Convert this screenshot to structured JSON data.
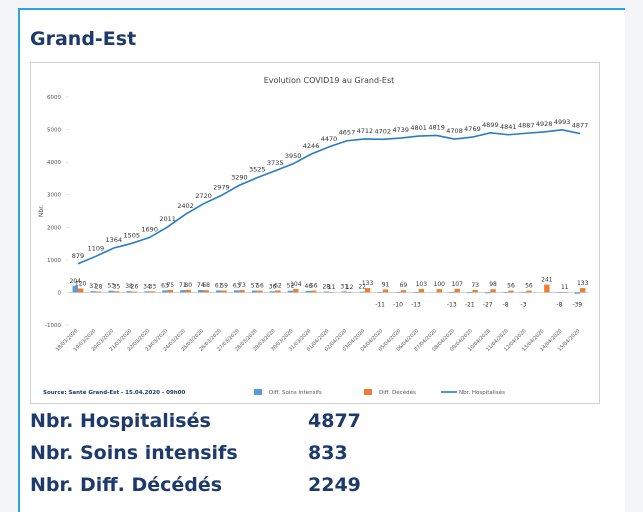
{
  "header": {
    "title": "Grand-Est"
  },
  "chart_data": {
    "type": "bar-line",
    "title": "Evolution COVID19 au Grand-Est",
    "y_label": "Nbr.",
    "source": "Source: Santé Grand-Est - 15.04.2020 - 09h00",
    "categories": [
      "18/03/2020",
      "19/03/2020",
      "20/03/2020",
      "21/03/2020",
      "22/03/2020",
      "23/03/2020",
      "24/03/2020",
      "25/03/2020",
      "26/03/2020",
      "27/03/2020",
      "28/03/2020",
      "29/03/2020",
      "30/03/2020",
      "31/03/2020",
      "01/04/2020",
      "02/04/2020",
      "03/04/2020",
      "04/04/2020",
      "05/04/2020",
      "06/04/2020",
      "07/04/2020",
      "08/04/2020",
      "09/04/2020",
      "10/04/2020",
      "11/04/2020",
      "12/04/2020",
      "13/04/2020",
      "14/04/2020",
      "15/04/2020"
    ],
    "series": [
      {
        "name": "Diff. Soins intensifs",
        "type": "bar",
        "color": "#5b9bd5",
        "values": [
          204,
          37,
          53,
          38,
          34,
          63,
          71,
          74,
          61,
          63,
          57,
          36,
          52,
          46,
          28,
          31,
          22,
          -11,
          -10,
          -13,
          null,
          -13,
          -21,
          -27,
          -8,
          -3,
          null,
          -8,
          -39
        ]
      },
      {
        "name": "Diff. Décédés",
        "type": "bar",
        "color": "#ed7d31",
        "values": [
          120,
          28,
          35,
          26,
          33,
          75,
          80,
          68,
          59,
          73,
          56,
          62,
          104,
          56,
          11,
          12,
          133,
          91,
          69,
          103,
          100,
          107,
          73,
          98,
          56,
          56,
          241,
          11,
          133
        ]
      },
      {
        "name": "Nbr. Hospitalisés",
        "type": "line",
        "color": "#2a7bc6",
        "values": [
          879,
          1109,
          1364,
          1505,
          1690,
          2011,
          2402,
          2720,
          2979,
          3290,
          3525,
          3735,
          3950,
          4246,
          4470,
          4657,
          4712,
          4702,
          4739,
          4801,
          4819,
          4708,
          4769,
          4899,
          4841,
          4887,
          4928,
          4993,
          4877
        ]
      }
    ],
    "ylim": [
      -1000,
      6000
    ],
    "yticks": [
      -1000,
      0,
      1000,
      2000,
      3000,
      4000,
      5000,
      6000
    ],
    "legend": "bottom"
  },
  "stats": [
    {
      "label": "Nbr. Hospitalisés",
      "value": 4877
    },
    {
      "label": "Nbr. Soins intensifs",
      "value": 833
    },
    {
      "label": "Nbr. Diff. Décédés",
      "value": 2249
    }
  ]
}
